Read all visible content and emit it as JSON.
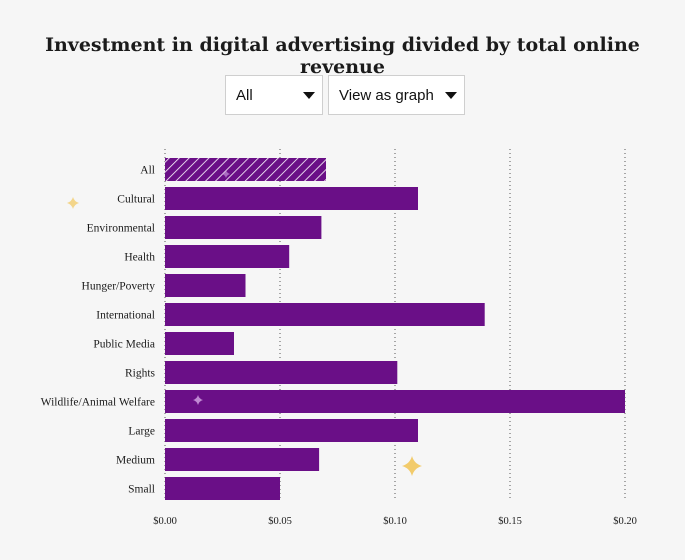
{
  "title": "Investment in digital advertising divided by total online revenue",
  "controls": {
    "filter_value": "All",
    "view_value": "View as graph"
  },
  "colors": {
    "bar": "#6a0f87",
    "background": "#f6f6f6",
    "grid": "#555555",
    "sparkle": "#f2c75c"
  },
  "chart_data": {
    "type": "bar",
    "orientation": "horizontal",
    "title": "Investment in digital advertising divided by total online revenue",
    "xlabel": "",
    "ylabel": "",
    "categories": [
      "All",
      "Cultural",
      "Environmental",
      "Health",
      "Hunger/Poverty",
      "International",
      "Public Media",
      "Rights",
      "Wildlife/Animal Welfare",
      "Large",
      "Medium",
      "Small"
    ],
    "values": [
      0.07,
      0.11,
      0.068,
      0.054,
      0.035,
      0.139,
      0.03,
      0.101,
      0.2,
      0.11,
      0.067,
      0.05
    ],
    "highlighted": [
      "All"
    ],
    "xlim": [
      0,
      0.2
    ],
    "xticks": [
      0,
      0.05,
      0.1,
      0.15,
      0.2
    ],
    "xtick_labels": [
      "$0.00",
      "$0.05",
      "$0.10",
      "$0.15",
      "$0.20"
    ],
    "grid": "vertical dotted",
    "legend": "none"
  }
}
